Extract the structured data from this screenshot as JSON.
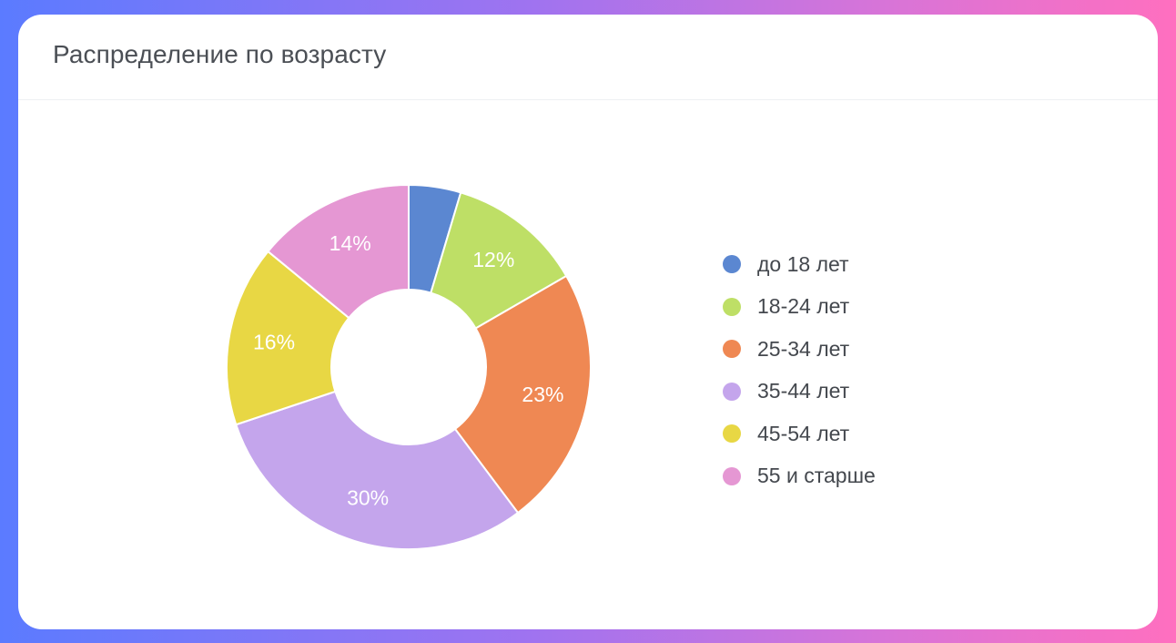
{
  "card": {
    "title": "Распределение по возрасту"
  },
  "chart_data": {
    "type": "pie",
    "variant": "donut",
    "title": "Распределение по возрасту",
    "legend_position": "right",
    "slices": [
      {
        "label": "до 18 лет",
        "value": 4.6,
        "display": "",
        "color": "#5b87d1"
      },
      {
        "label": "18-24 лет",
        "value": 12,
        "display": "12%",
        "color": "#bedf66"
      },
      {
        "label": "25-34 лет",
        "value": 23,
        "display": "23%",
        "color": "#ef8853"
      },
      {
        "label": "35-44 лет",
        "value": 30,
        "display": "30%",
        "color": "#c4a5ec"
      },
      {
        "label": "45-54 лет",
        "value": 16,
        "display": "16%",
        "color": "#e8d744"
      },
      {
        "label": "55 и старше",
        "value": 14,
        "display": "14%",
        "color": "#e597d3"
      }
    ]
  }
}
